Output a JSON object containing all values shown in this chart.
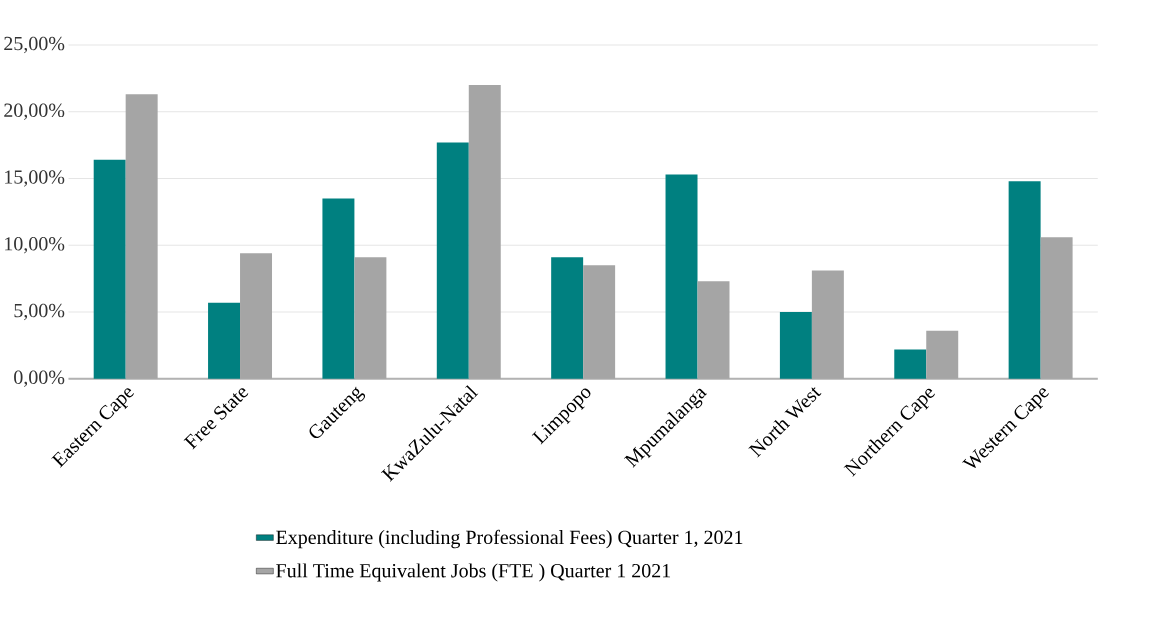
{
  "chart_data": {
    "type": "bar",
    "categories": [
      "Eastern Cape",
      "Free State",
      "Gauteng",
      "KwaZulu-Natal",
      "Limpopo",
      "Mpumalanga",
      "North West",
      "Northern Cape",
      "Western Cape"
    ],
    "series": [
      {
        "name": "Expenditure (including Professional Fees) Quarter 1, 2021",
        "color": "#008080",
        "values": [
          16.4,
          5.7,
          13.5,
          17.7,
          9.1,
          15.3,
          5.0,
          2.2,
          14.8
        ]
      },
      {
        "name": "Full Time Equivalent Jobs (FTE ) Quarter 1 2021",
        "color": "#a5a5a5",
        "values": [
          21.3,
          9.4,
          9.1,
          22.0,
          8.5,
          7.3,
          8.1,
          3.6,
          10.6
        ]
      }
    ],
    "ylim": [
      0,
      25
    ],
    "yticks": [
      {
        "value": 0,
        "label": "0,00%"
      },
      {
        "value": 5,
        "label": "5,00%"
      },
      {
        "value": 10,
        "label": "10,00%"
      },
      {
        "value": 15,
        "label": "15,00%"
      },
      {
        "value": 20,
        "label": "20,00%"
      },
      {
        "value": 25,
        "label": "25,00%"
      }
    ],
    "grid": "y",
    "legend": "bottom"
  }
}
